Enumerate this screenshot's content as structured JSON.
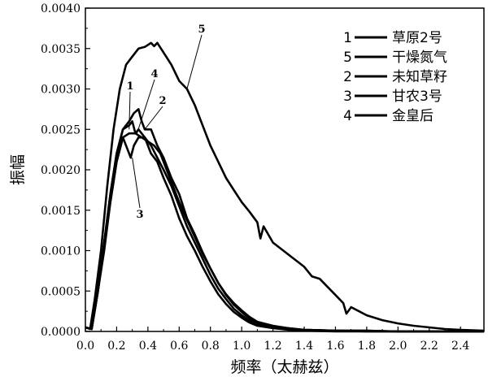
{
  "chart_data": {
    "type": "line",
    "xlabel": "频率（太赫兹）",
    "ylabel": "振幅",
    "xlim": [
      0.0,
      2.55
    ],
    "ylim": [
      0.0,
      0.004
    ],
    "x_ticks": [
      "0.0",
      "0.2",
      "0.4",
      "0.6",
      "0.8",
      "1.0",
      "1.2",
      "1.4",
      "1.6",
      "1.8",
      "2.0",
      "2.2",
      "2.4"
    ],
    "y_ticks": [
      "0.0000",
      "0.0005",
      "0.0010",
      "0.0015",
      "0.0020",
      "0.0025",
      "0.0030",
      "0.0035",
      "0.0040"
    ],
    "grid": false,
    "legend_position": "top-right",
    "line_color": "#000000",
    "series": [
      {
        "name": "草原2号",
        "label": "1",
        "x": [
          0.0,
          0.04,
          0.08,
          0.12,
          0.16,
          0.2,
          0.24,
          0.28,
          0.3,
          0.32,
          0.34,
          0.38,
          0.42,
          0.46,
          0.5,
          0.55,
          0.6,
          0.65,
          0.7,
          0.75,
          0.8,
          0.85,
          0.9,
          0.95,
          1.0,
          1.05,
          1.1,
          1.2,
          1.3,
          1.4,
          1.6,
          1.8,
          2.0,
          2.2,
          2.55
        ],
        "y": [
          5e-05,
          3e-05,
          0.0005,
          0.0011,
          0.0017,
          0.0022,
          0.0025,
          0.00255,
          0.0026,
          0.00245,
          0.0025,
          0.0024,
          0.0023,
          0.00215,
          0.002,
          0.0018,
          0.00155,
          0.0013,
          0.0011,
          0.0009,
          0.0007,
          0.00053,
          0.0004,
          0.00028,
          0.0002,
          0.00013,
          9e-05,
          5e-05,
          3e-05,
          2e-05,
          1e-05,
          1e-05,
          0.0,
          0.0,
          0.0
        ]
      },
      {
        "name": "干燥氮气",
        "label": "5",
        "x": [
          0.0,
          0.03,
          0.06,
          0.1,
          0.14,
          0.18,
          0.22,
          0.26,
          0.3,
          0.34,
          0.38,
          0.42,
          0.44,
          0.46,
          0.5,
          0.55,
          0.6,
          0.65,
          0.7,
          0.75,
          0.8,
          0.85,
          0.9,
          0.95,
          1.0,
          1.05,
          1.1,
          1.12,
          1.14,
          1.2,
          1.3,
          1.4,
          1.45,
          1.5,
          1.6,
          1.65,
          1.67,
          1.7,
          1.8,
          1.9,
          2.0,
          2.1,
          2.2,
          2.3,
          2.4,
          2.55
        ],
        "y": [
          5e-05,
          3e-05,
          0.0004,
          0.001,
          0.0018,
          0.0025,
          0.003,
          0.0033,
          0.0034,
          0.0035,
          0.00352,
          0.00357,
          0.00353,
          0.00357,
          0.00345,
          0.0033,
          0.0031,
          0.003,
          0.0028,
          0.00255,
          0.0023,
          0.0021,
          0.0019,
          0.00175,
          0.0016,
          0.00148,
          0.00135,
          0.00115,
          0.0013,
          0.0011,
          0.00095,
          0.0008,
          0.00068,
          0.00065,
          0.00045,
          0.00035,
          0.00022,
          0.0003,
          0.0002,
          0.00014,
          0.0001,
          7e-05,
          5e-05,
          3e-05,
          2e-05,
          1e-05
        ]
      },
      {
        "name": "未知草籽",
        "label": "2",
        "x": [
          0.0,
          0.04,
          0.08,
          0.12,
          0.16,
          0.2,
          0.24,
          0.28,
          0.31,
          0.34,
          0.36,
          0.38,
          0.42,
          0.46,
          0.5,
          0.55,
          0.6,
          0.65,
          0.7,
          0.75,
          0.8,
          0.85,
          0.9,
          0.95,
          1.0,
          1.05,
          1.1,
          1.2,
          1.3,
          1.4,
          1.6,
          1.8,
          2.0,
          2.2,
          2.55
        ],
        "y": [
          5e-05,
          3e-05,
          0.0005,
          0.0011,
          0.0017,
          0.0022,
          0.0025,
          0.0026,
          0.0027,
          0.00275,
          0.0026,
          0.0025,
          0.0025,
          0.0023,
          0.00215,
          0.0019,
          0.0017,
          0.0014,
          0.0012,
          0.00098,
          0.00078,
          0.0006,
          0.00045,
          0.00033,
          0.00024,
          0.00016,
          0.0001,
          6e-05,
          4e-05,
          2e-05,
          1e-05,
          1e-05,
          0.0,
          0.0,
          0.0
        ]
      },
      {
        "name": "甘农3号",
        "label": "3",
        "x": [
          0.0,
          0.04,
          0.08,
          0.12,
          0.16,
          0.2,
          0.24,
          0.27,
          0.29,
          0.31,
          0.34,
          0.38,
          0.42,
          0.46,
          0.5,
          0.55,
          0.6,
          0.65,
          0.7,
          0.75,
          0.8,
          0.85,
          0.9,
          0.95,
          1.0,
          1.05,
          1.1,
          1.2,
          1.3,
          1.4,
          1.6,
          1.8,
          2.0,
          2.2,
          2.55
        ],
        "y": [
          5e-05,
          3e-05,
          0.0005,
          0.0011,
          0.0016,
          0.0021,
          0.0024,
          0.00225,
          0.00215,
          0.0023,
          0.0024,
          0.0024,
          0.0022,
          0.0021,
          0.0019,
          0.00168,
          0.0014,
          0.00118,
          0.001,
          0.0008,
          0.00062,
          0.00046,
          0.00034,
          0.00024,
          0.00017,
          0.00011,
          7e-05,
          4e-05,
          2e-05,
          1e-05,
          0.0,
          0.0,
          0.0,
          0.0,
          0.0
        ]
      },
      {
        "name": "金皇后",
        "label": "4",
        "x": [
          0.0,
          0.04,
          0.08,
          0.12,
          0.16,
          0.2,
          0.24,
          0.28,
          0.32,
          0.36,
          0.4,
          0.44,
          0.48,
          0.52,
          0.56,
          0.6,
          0.65,
          0.7,
          0.75,
          0.8,
          0.85,
          0.9,
          0.95,
          1.0,
          1.05,
          1.1,
          1.2,
          1.3,
          1.4,
          1.6,
          1.8,
          2.0,
          2.2,
          2.55
        ],
        "y": [
          5e-05,
          3e-05,
          0.0005,
          0.001,
          0.0016,
          0.0021,
          0.0024,
          0.00245,
          0.00245,
          0.0024,
          0.00235,
          0.0023,
          0.0022,
          0.002,
          0.0018,
          0.0016,
          0.00138,
          0.00117,
          0.00096,
          0.00078,
          0.0006,
          0.00046,
          0.00035,
          0.00026,
          0.00018,
          0.00012,
          7e-05,
          4e-05,
          2e-05,
          1e-05,
          0.0,
          0.0,
          0.0,
          0.0
        ]
      }
    ]
  }
}
